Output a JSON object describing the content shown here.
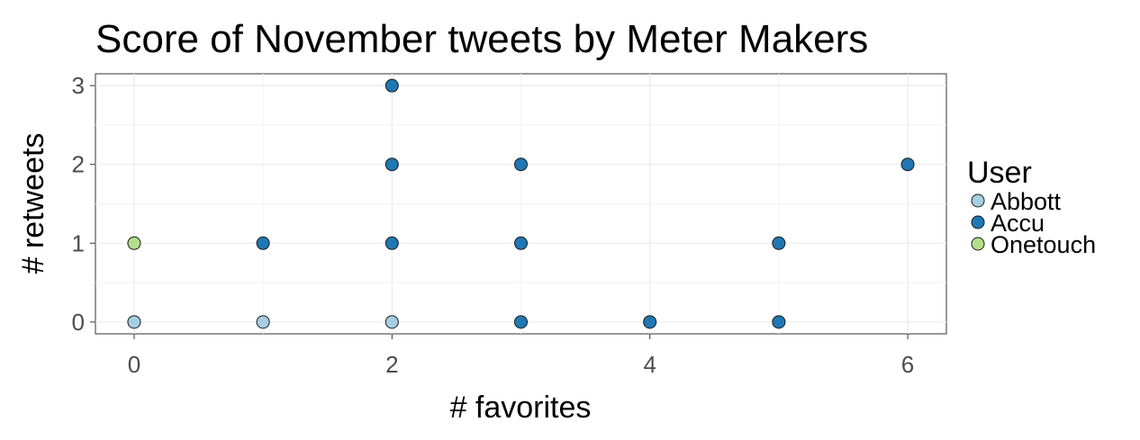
{
  "chart_data": {
    "type": "scatter",
    "title": "Score of November tweets by Meter Makers",
    "xlabel": "# favorites",
    "ylabel": "# retweets",
    "xlim": [
      -0.3,
      6.3
    ],
    "ylim": [
      -0.15,
      3.15
    ],
    "x_ticks": [
      0,
      2,
      4,
      6
    ],
    "x_tick_labels": [
      "0",
      "2",
      "4",
      "6"
    ],
    "y_ticks": [
      0,
      1,
      2,
      3
    ],
    "y_tick_labels": [
      "0",
      "1",
      "2",
      "3"
    ],
    "grid": true,
    "legend": {
      "title": "User",
      "placement": "right"
    },
    "series": [
      {
        "name": "Abbott",
        "color": "#a6cee3",
        "points": [
          {
            "x": 0,
            "y": 0
          },
          {
            "x": 1,
            "y": 0
          },
          {
            "x": 2,
            "y": 0
          }
        ]
      },
      {
        "name": "Accu",
        "color": "#1f78b4",
        "points": [
          {
            "x": 1,
            "y": 1
          },
          {
            "x": 2,
            "y": 1
          },
          {
            "x": 2,
            "y": 2
          },
          {
            "x": 2,
            "y": 3
          },
          {
            "x": 3,
            "y": 0
          },
          {
            "x": 3,
            "y": 1
          },
          {
            "x": 3,
            "y": 2
          },
          {
            "x": 4,
            "y": 0
          },
          {
            "x": 5,
            "y": 0
          },
          {
            "x": 5,
            "y": 1
          },
          {
            "x": 6,
            "y": 2
          }
        ]
      },
      {
        "name": "Onetouch",
        "color": "#b2df8a",
        "points": [
          {
            "x": 0,
            "y": 1
          }
        ]
      }
    ]
  }
}
